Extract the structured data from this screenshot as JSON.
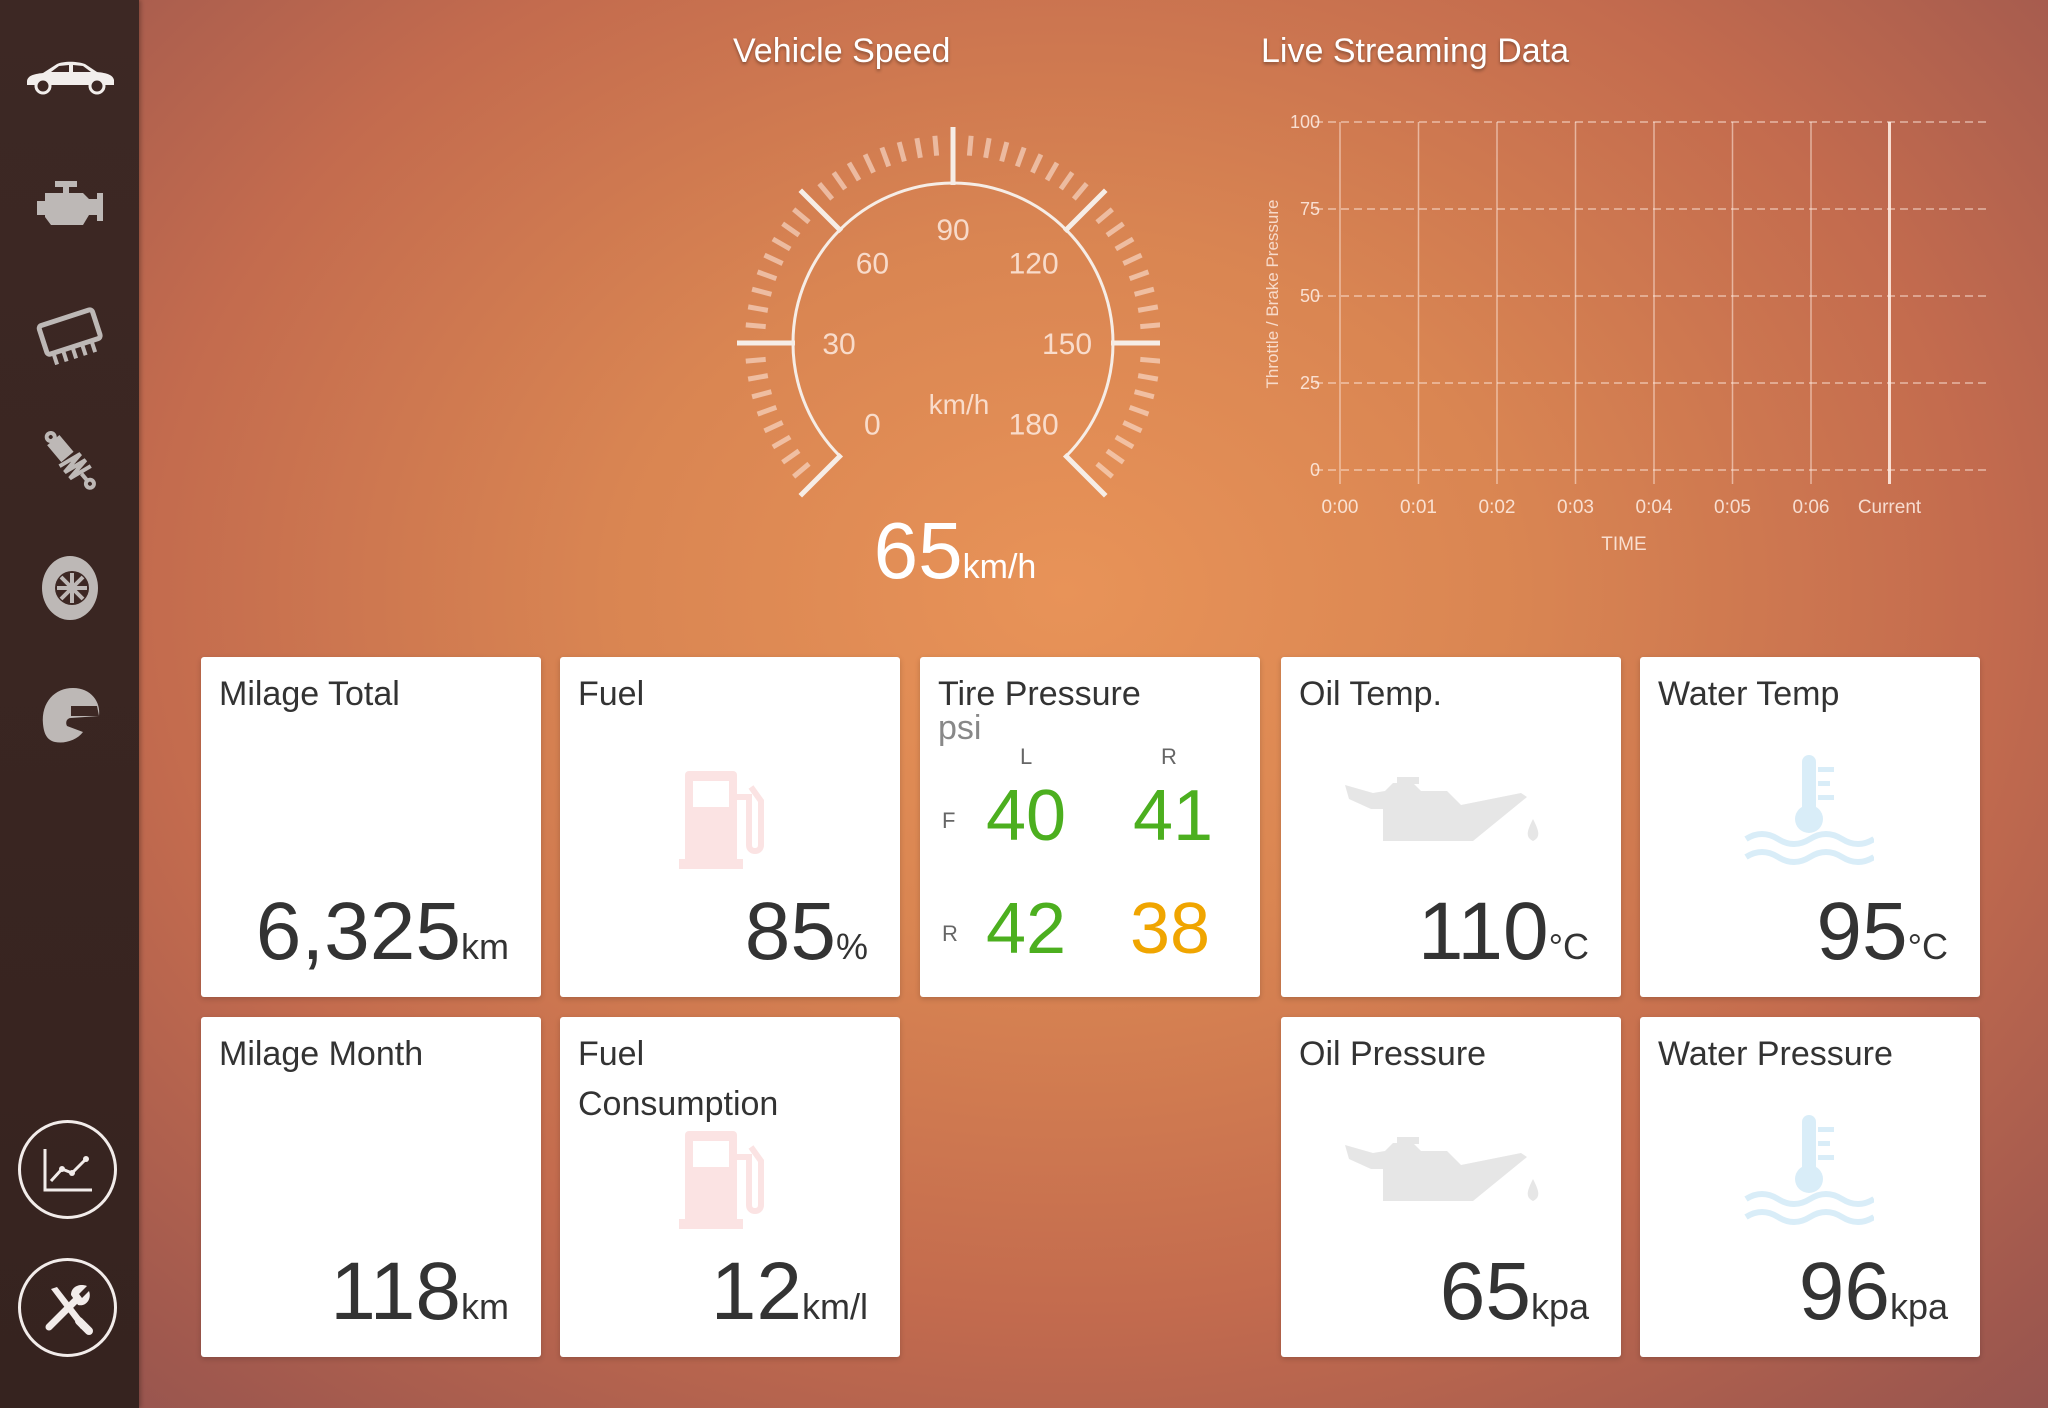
{
  "sidebar": {
    "items": [
      {
        "icon": "car-icon"
      },
      {
        "icon": "engine-icon"
      },
      {
        "icon": "chip-icon"
      },
      {
        "icon": "suspension-icon"
      },
      {
        "icon": "wheel-icon"
      },
      {
        "icon": "helmet-icon"
      }
    ],
    "bottom": [
      {
        "icon": "chart-line-icon"
      },
      {
        "icon": "tools-icon"
      }
    ]
  },
  "speed": {
    "title": "Vehicle Speed",
    "value": "65",
    "unit": "km/h",
    "dial_unit": "km/h",
    "ticks": [
      "0",
      "30",
      "60",
      "90",
      "120",
      "150",
      "180"
    ],
    "range": [
      0,
      180
    ]
  },
  "live": {
    "title": "Live Streaming Data"
  },
  "chart_data": {
    "type": "line",
    "title": "Live Streaming Data",
    "xlabel": "TIME",
    "ylabel": "Throttle / Brake Pressure",
    "x": [
      "0:00",
      "0:01",
      "0:02",
      "0:03",
      "0:04",
      "0:05",
      "0:06",
      "Current"
    ],
    "yticks": [
      "0",
      "25",
      "50",
      "75",
      "100"
    ],
    "ylim": [
      0,
      100
    ],
    "series": [],
    "grid": true
  },
  "cards": {
    "milage_total": {
      "title": "Milage Total",
      "value": "6,325",
      "unit": "km"
    },
    "fuel": {
      "title": "Fuel",
      "value": "85",
      "unit": "%"
    },
    "tire": {
      "title": "Tire Pressure",
      "unit": "psi",
      "col_left": "L",
      "col_right": "R",
      "row_front": "F",
      "row_rear": "R",
      "fl": "40",
      "fr": "41",
      "rl": "42",
      "rr": "38",
      "color_ok": "#4caf1f",
      "color_warn": "#f0a500"
    },
    "oil_temp": {
      "title": "Oil Temp.",
      "value": "110",
      "unit": "°C"
    },
    "water_temp": {
      "title": "Water Temp",
      "value": "95",
      "unit": "°C"
    },
    "milage_month": {
      "title": "Milage Month",
      "value": "118",
      "unit": "km"
    },
    "fuel_consumption": {
      "title": "Fuel Consumption",
      "value": "12",
      "unit": "km/l"
    },
    "oil_pressure": {
      "title": "Oil Pressure",
      "value": "65",
      "unit": "kpa"
    },
    "water_pressure": {
      "title": "Water Pressure",
      "value": "96",
      "unit": "kpa"
    }
  }
}
